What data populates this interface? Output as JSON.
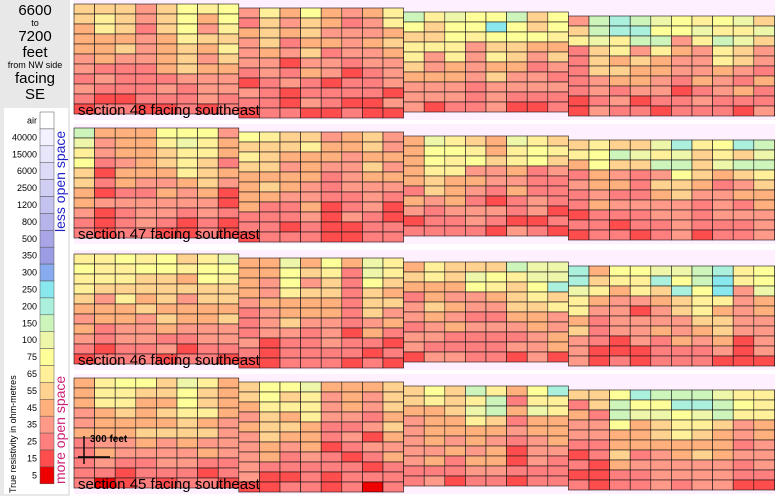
{
  "heading": {
    "from": "6600",
    "to_word": "to",
    "to": "7200",
    "unit": "feet",
    "ref": "from NW side",
    "facing_word": "facing",
    "direction": "SE"
  },
  "legend": {
    "title": "True resistivity in ohm-metres",
    "less_label": "less open space",
    "more_label": "more open space",
    "less_color": "#2222cc",
    "more_color": "#cc2277",
    "levels": [
      "air",
      "40000",
      "15000",
      "6000",
      "2500",
      "1200",
      "800",
      "500",
      "350",
      "300",
      "250",
      "200",
      "150",
      "100",
      "75",
      "65",
      "55",
      "45",
      "35",
      "25",
      "15",
      "5"
    ],
    "colors": [
      "#ffffff",
      "#f4f2ff",
      "#e8e6fb",
      "#dcdaf7",
      "#d0cef3",
      "#c4c2ef",
      "#b6b4ea",
      "#a8a6e6",
      "#9c9ce4",
      "#88aaee",
      "#88e8ee",
      "#aaf0dd",
      "#ccf4bb",
      "#eef6aa",
      "#ffff99",
      "#fff099",
      "#ffd28f",
      "#ffb07c",
      "#ff9a88",
      "#ff7f7f",
      "#ff4d4d",
      "#ee0000"
    ],
    "scale_label": "300 feet"
  },
  "chart_data": {
    "type": "heatmap",
    "value_units": "ohm-metres",
    "background_color": "#fff0ff",
    "sections": [
      {
        "title": "section 48  facing southeast",
        "columns": 35,
        "rows": 11
      },
      {
        "title": "section 47  facing southeast",
        "columns": 35,
        "rows": 11
      },
      {
        "title": "section 46  facing southeast",
        "columns": 35,
        "rows": 11
      },
      {
        "title": "section 45  facing southeast",
        "columns": 35,
        "rows": 11
      }
    ]
  }
}
